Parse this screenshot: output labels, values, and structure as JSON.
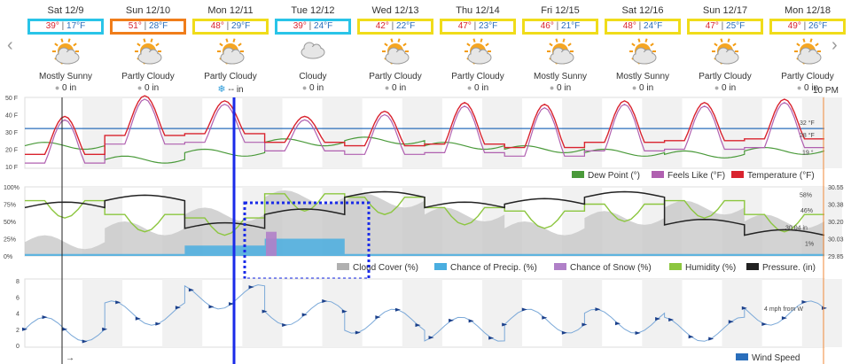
{
  "nav": {
    "prev": "‹",
    "next": "›"
  },
  "days": [
    {
      "date": "Sat 12/9",
      "hi": "39°",
      "lo": "17°F",
      "cond": "Mostly Sunny",
      "precip": "0 in",
      "icon": "mostly-sunny-icon"
    },
    {
      "date": "Sun 12/10",
      "hi": "51°",
      "lo": "28°F",
      "cond": "Partly Cloudy",
      "precip": "0 in",
      "icon": "partly-cloudy-icon"
    },
    {
      "date": "Mon 12/11",
      "hi": "48°",
      "lo": "29°F",
      "cond": "Partly Cloudy",
      "precip": "-- in",
      "icon": "partly-cloudy-icon",
      "snow": true
    },
    {
      "date": "Tue 12/12",
      "hi": "39°",
      "lo": "24°F",
      "cond": "Cloudy",
      "precip": "0 in",
      "icon": "cloudy-icon"
    },
    {
      "date": "Wed 12/13",
      "hi": "42°",
      "lo": "22°F",
      "cond": "Partly Cloudy",
      "precip": "0 in",
      "icon": "partly-cloudy-icon"
    },
    {
      "date": "Thu 12/14",
      "hi": "47°",
      "lo": "23°F",
      "cond": "Partly Cloudy",
      "precip": "0 in",
      "icon": "partly-cloudy-icon"
    },
    {
      "date": "Fri 12/15",
      "hi": "46°",
      "lo": "21°F",
      "cond": "Mostly Sunny",
      "precip": "0 in",
      "icon": "mostly-sunny-icon"
    },
    {
      "date": "Sat 12/16",
      "hi": "48°",
      "lo": "24°F",
      "cond": "Mostly Sunny",
      "precip": "0 in",
      "icon": "mostly-sunny-icon"
    },
    {
      "date": "Sun 12/17",
      "hi": "47°",
      "lo": "25°F",
      "cond": "Partly Cloudy",
      "precip": "0 in",
      "icon": "partly-cloudy-icon"
    },
    {
      "date": "Mon 12/18",
      "hi": "49°",
      "lo": "26°F",
      "cond": "Partly Cloudy",
      "precip": "0 in",
      "icon": "partly-cloudy-icon"
    }
  ],
  "time_label": "10 PM",
  "highlight_colors": {
    "cyan": "#29c4e8",
    "orange": "#f07d1a",
    "yellow": "#f0dc1a",
    "blue_marker": "#1a2be8"
  },
  "chart_data": [
    {
      "type": "line",
      "title": "",
      "yticks": [
        "50 F",
        "40 F",
        "30 F",
        "20 F",
        "10 F"
      ],
      "ylim": [
        10,
        50
      ],
      "reference_line": 32,
      "series": [
        {
          "name": "Dew Point (°)",
          "color": "#4a9a3a",
          "end_label": "19 °"
        },
        {
          "name": "Feels Like (°F)",
          "color": "#b060b0",
          "end_label": "28 °F"
        },
        {
          "name": "Temperature (°F)",
          "color": "#d9232e",
          "end_label": "32 °F"
        }
      ]
    },
    {
      "type": "area",
      "yticks_left": [
        "100%",
        "75%",
        "50%",
        "25%",
        "0%"
      ],
      "yticks_right": [
        "30.55",
        "30.38",
        "30.20",
        "30.03",
        "29.85"
      ],
      "series": [
        {
          "name": "Cloud Cover (%)",
          "color": "#b0b0b0"
        },
        {
          "name": "Chance of Precip. (%)",
          "color": "#4aaee0"
        },
        {
          "name": "Chance of Snow (%)",
          "color": "#b080c8"
        },
        {
          "name": "Humidity (%)",
          "color": "#8cc63f",
          "end_label": "58%"
        },
        {
          "name": "Pressure. (in)",
          "color": "#222222",
          "end_label": "30.04 in"
        }
      ],
      "extra_labels": {
        "cloud_end": "46%",
        "precip_end": "1%"
      }
    },
    {
      "type": "line",
      "yticks": [
        "8",
        "6",
        "4",
        "2",
        "0"
      ],
      "ylim": [
        0,
        8
      ],
      "series": [
        {
          "name": "Wind Speed",
          "color": "#2a6ebb",
          "end_label": "4 mph from W"
        }
      ]
    }
  ]
}
